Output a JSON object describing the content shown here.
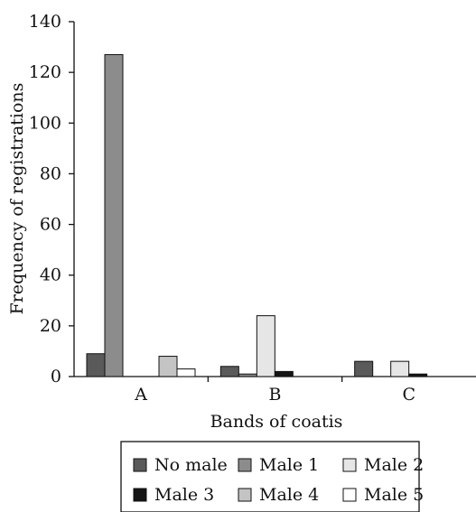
{
  "chart_data": {
    "type": "bar",
    "xlabel": "Bands of coatis",
    "ylabel": "Frequency of registrations",
    "ylim": [
      0,
      140
    ],
    "yticks": [
      0,
      20,
      40,
      60,
      80,
      100,
      120,
      140
    ],
    "categories": [
      "A",
      "B",
      "C"
    ],
    "series": [
      {
        "name": "No male",
        "color": "#5a5a5a",
        "values": [
          9,
          4,
          6
        ]
      },
      {
        "name": "Male 1",
        "color": "#8c8c8c",
        "values": [
          127,
          1,
          0
        ]
      },
      {
        "name": "Male 2",
        "color": "#e6e6e6",
        "values": [
          0,
          24,
          6
        ]
      },
      {
        "name": "Male 3",
        "color": "#151515",
        "values": [
          0,
          2,
          1
        ]
      },
      {
        "name": "Male 4",
        "color": "#c4c4c4",
        "values": [
          8,
          0,
          0
        ]
      },
      {
        "name": "Male 5",
        "color": "#ffffff",
        "values": [
          3,
          0,
          0
        ]
      }
    ],
    "legend_position": "bottom",
    "grid": false
  }
}
